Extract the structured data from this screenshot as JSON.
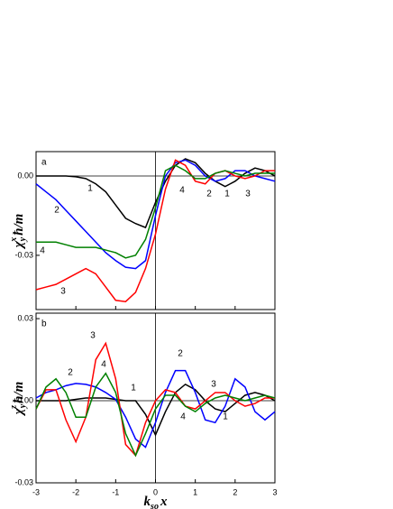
{
  "chart_data": [
    {
      "type": "line",
      "panel": "a",
      "ylabel": {
        "symbol": "χ",
        "subscript": "y",
        "superscript": "x",
        "unit": "ħ/m"
      },
      "x": [
        -3,
        -2.75,
        -2.5,
        -2.25,
        -2,
        -1.75,
        -1.5,
        -1.25,
        -1,
        -0.75,
        -0.5,
        -0.25,
        0,
        0.25,
        0.5,
        0.75,
        1,
        1.25,
        1.5,
        1.75,
        2,
        2.25,
        2.5,
        2.75,
        3
      ],
      "xlim": [
        -3,
        3
      ],
      "xticks": [
        -3,
        -2,
        -1,
        0,
        1,
        2,
        3
      ],
      "ylim": [
        -0.0505,
        0.0092
      ],
      "yticks": [
        {
          "value": -0.03,
          "label": "-0.03"
        },
        {
          "value": 0,
          "label": "0.00"
        }
      ],
      "series": [
        {
          "name": "1",
          "color": "#000000",
          "values": [
            0,
            0,
            0,
            0,
            -0.0003,
            -0.001,
            -0.003,
            -0.006,
            -0.011,
            -0.016,
            -0.018,
            -0.0195,
            -0.01,
            -0.002,
            0.004,
            0.0065,
            0.005,
            0.001,
            -0.002,
            -0.004,
            -0.002,
            0.001,
            0.003,
            0.002,
            0
          ]
        },
        {
          "name": "2",
          "color": "#0000ff",
          "values": [
            -0.003,
            -0.006,
            -0.009,
            -0.013,
            -0.017,
            -0.021,
            -0.025,
            -0.029,
            -0.032,
            -0.0345,
            -0.035,
            -0.032,
            -0.015,
            0,
            0.005,
            0.006,
            0.004,
            0,
            -0.002,
            -0.001,
            0.002,
            0.002,
            0,
            -0.001,
            -0.002
          ]
        },
        {
          "name": "3",
          "color": "#ff0000",
          "values": [
            -0.043,
            -0.042,
            -0.041,
            -0.039,
            -0.037,
            -0.035,
            -0.037,
            -0.042,
            -0.047,
            -0.0475,
            -0.044,
            -0.035,
            -0.022,
            -0.005,
            0.006,
            0.004,
            -0.002,
            -0.003,
            0.001,
            0.002,
            0,
            -0.001,
            0,
            0.002,
            0.002
          ]
        },
        {
          "name": "4",
          "color": "#008000",
          "values": [
            -0.025,
            -0.025,
            -0.025,
            -0.026,
            -0.027,
            -0.027,
            -0.027,
            -0.028,
            -0.029,
            -0.031,
            -0.03,
            -0.024,
            -0.012,
            0.002,
            0.004,
            0.002,
            -0.001,
            -0.001,
            0.001,
            0.002,
            0.001,
            0,
            0.001,
            0.001,
            0.001
          ]
        }
      ]
    },
    {
      "type": "line",
      "panel": "b",
      "ylabel": {
        "symbol": "χ",
        "subscript": "y",
        "superscript": "z",
        "unit": "ħ/m"
      },
      "xlabel": {
        "symbol": "k",
        "subscript": "so",
        "variable": "x"
      },
      "x": [
        -3,
        -2.75,
        -2.5,
        -2.25,
        -2,
        -1.75,
        -1.5,
        -1.25,
        -1,
        -0.75,
        -0.5,
        -0.25,
        0,
        0.25,
        0.5,
        0.75,
        1,
        1.25,
        1.5,
        1.75,
        2,
        2.25,
        2.5,
        2.75,
        3
      ],
      "xlim": [
        -3,
        3
      ],
      "xticks": [
        -3,
        -2,
        -1,
        0,
        1,
        2,
        3
      ],
      "ylim": [
        -0.03,
        0.032
      ],
      "yticks": [
        {
          "value": -0.03,
          "label": "-0.03"
        },
        {
          "value": 0,
          "label": "0.00"
        },
        {
          "value": 0.03,
          "label": "0.03"
        }
      ],
      "series": [
        {
          "name": "1",
          "color": "#000000",
          "values": [
            0,
            0,
            0,
            0,
            0.0005,
            0.001,
            0.001,
            0.001,
            0.0005,
            0,
            0,
            -0.005,
            -0.0125,
            -0.004,
            0.003,
            0.006,
            0.004,
            0,
            -0.003,
            -0.004,
            -0.001,
            0.002,
            0.003,
            0.002,
            0
          ]
        },
        {
          "name": "2",
          "color": "#0000ff",
          "values": [
            0.001,
            0.003,
            0.004,
            0.0055,
            0.0063,
            0.006,
            0.005,
            0.003,
            0.0005,
            -0.006,
            -0.014,
            -0.017,
            -0.008,
            0.003,
            0.011,
            0.011,
            0.003,
            -0.007,
            -0.008,
            -0.002,
            0.008,
            0.005,
            -0.004,
            -0.007,
            -0.004
          ]
        },
        {
          "name": "3",
          "color": "#ff0000",
          "values": [
            -0.003,
            0.004,
            0.004,
            -0.007,
            -0.015,
            -0.006,
            0.015,
            0.021,
            0.008,
            -0.016,
            -0.02,
            -0.008,
            0,
            0.004,
            0.003,
            -0.002,
            -0.003,
            0,
            0.003,
            0.003,
            0,
            -0.002,
            -0.001,
            0.001,
            0.001
          ]
        },
        {
          "name": "4",
          "color": "#008000",
          "values": [
            -0.003,
            0.005,
            0.008,
            0.003,
            -0.006,
            -0.006,
            0.005,
            0.01,
            0.003,
            -0.012,
            -0.02,
            -0.012,
            -0.003,
            0.002,
            0.002,
            -0.002,
            -0.004,
            -0.001,
            0.001,
            0.002,
            0.001,
            0,
            0.001,
            0.002,
            0.001
          ]
        }
      ]
    }
  ]
}
